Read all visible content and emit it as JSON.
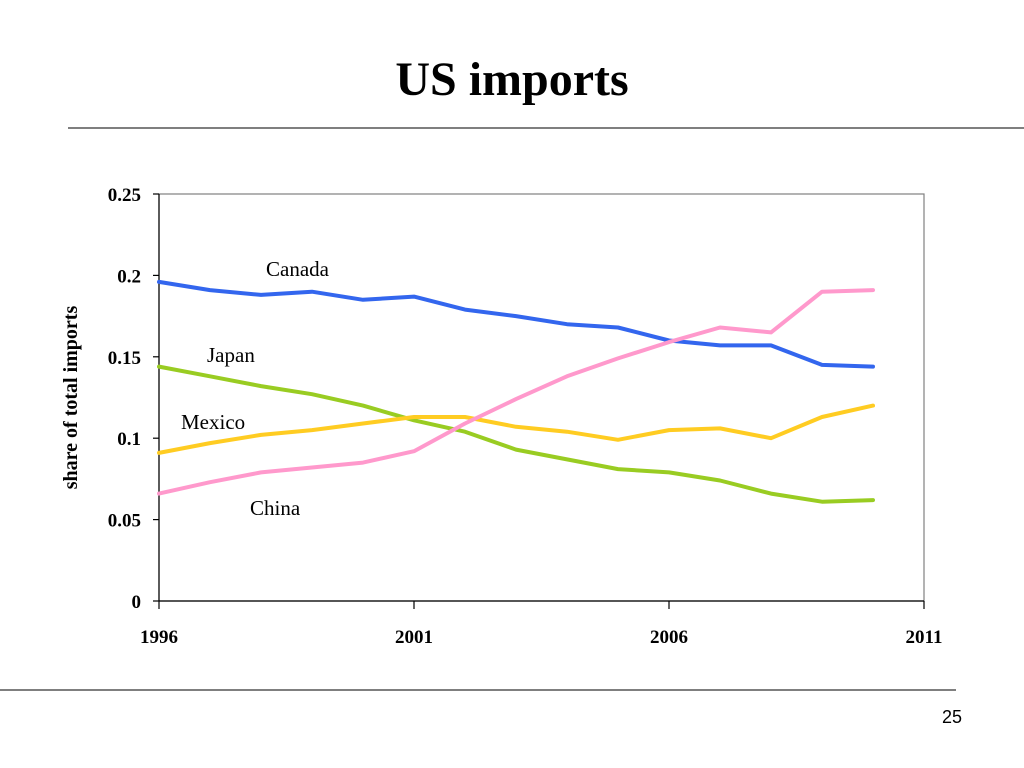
{
  "slide": {
    "title": "US imports",
    "page_number": "25"
  },
  "chart_data": {
    "type": "line",
    "title": "",
    "xlabel": "",
    "ylabel": "share of total imports",
    "xlim": [
      1996,
      2011
    ],
    "ylim": [
      0,
      0.25
    ],
    "x_ticks": [
      1996,
      2001,
      2006,
      2011
    ],
    "x_tick_labels": [
      "1996",
      "2001",
      "2006",
      "2011"
    ],
    "y_ticks": [
      0,
      0.05,
      0.1,
      0.15,
      0.2,
      0.25
    ],
    "y_tick_labels": [
      "0",
      "0.05",
      "0.1",
      "0.15",
      "0.2",
      "0.25"
    ],
    "grid": false,
    "legend": "inline labels",
    "x": [
      1996,
      1997,
      1998,
      1999,
      2000,
      2001,
      2002,
      2003,
      2004,
      2005,
      2006,
      2007,
      2008,
      2009,
      2010
    ],
    "series": [
      {
        "name": "Canada",
        "color": "#3366ee",
        "values": [
          0.196,
          0.191,
          0.188,
          0.19,
          0.185,
          0.187,
          0.179,
          0.175,
          0.17,
          0.168,
          0.16,
          0.157,
          0.157,
          0.145,
          0.144
        ]
      },
      {
        "name": "Japan",
        "color": "#99cc22",
        "values": [
          0.144,
          0.138,
          0.132,
          0.127,
          0.12,
          0.111,
          0.104,
          0.093,
          0.087,
          0.081,
          0.079,
          0.074,
          0.066,
          0.061,
          0.062
        ]
      },
      {
        "name": "Mexico",
        "color": "#ffcc22",
        "values": [
          0.091,
          0.097,
          0.102,
          0.105,
          0.109,
          0.113,
          0.113,
          0.107,
          0.104,
          0.099,
          0.105,
          0.106,
          0.1,
          0.113,
          0.12
        ]
      },
      {
        "name": "China",
        "color": "#ff99cc",
        "values": [
          0.066,
          0.073,
          0.079,
          0.082,
          0.085,
          0.092,
          0.109,
          0.124,
          0.138,
          0.149,
          0.159,
          0.168,
          0.165,
          0.19,
          0.191
        ]
      }
    ]
  }
}
